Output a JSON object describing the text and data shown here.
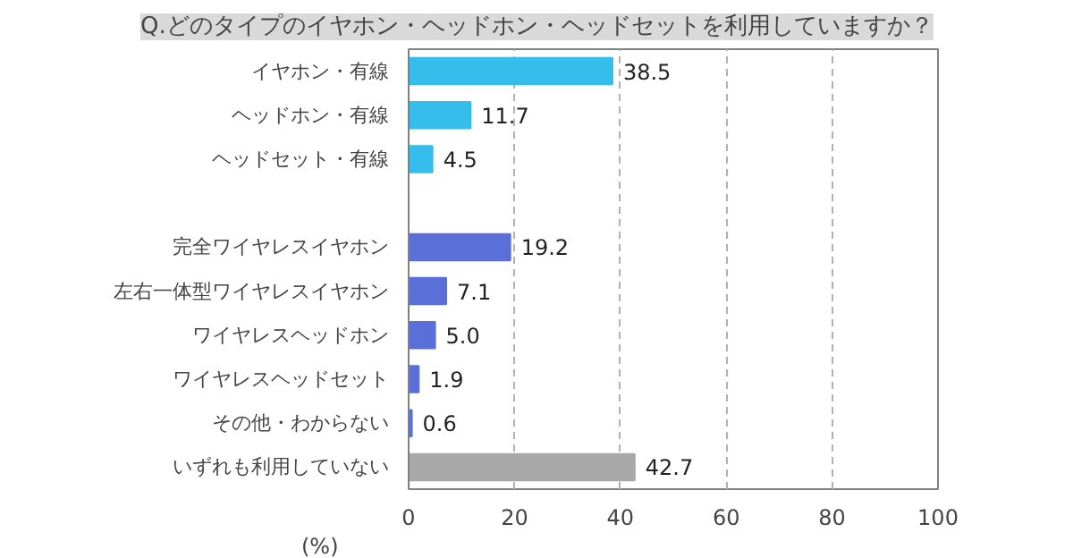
{
  "chart_data": {
    "type": "bar",
    "orientation": "horizontal",
    "title": "Q.どのタイプのイヤホン・ヘッドホン・ヘッドセットを利用していますか？",
    "xlabel": "(%)",
    "categories": [
      "イヤホン・有線",
      "ヘッドホン・有線",
      "ヘッドセット・有線",
      null,
      "完全ワイヤレスイヤホン",
      "左右一体型ワイヤレスイヤホン",
      "ワイヤレスヘッドホン",
      "ワイヤレスヘッドセット",
      "その他・わからない",
      "いずれも利用していない"
    ],
    "values": [
      38.5,
      11.7,
      4.5,
      null,
      19.2,
      7.1,
      5.0,
      1.9,
      0.6,
      42.7
    ],
    "colors": [
      "#35bdec",
      "#35bdec",
      "#35bdec",
      null,
      "#5a6fd8",
      "#5a6fd8",
      "#5a6fd8",
      "#5a6fd8",
      "#5a6fd8",
      "#a8a8a8"
    ],
    "value_labels": [
      "38.5",
      "11.7",
      "4.5",
      null,
      "19.2",
      "7.1",
      "5.0",
      "1.9",
      "0.6",
      "42.7"
    ],
    "xlim": [
      0,
      100
    ],
    "xticks": [
      0,
      20,
      40,
      60,
      80,
      100
    ],
    "grid": "x"
  }
}
